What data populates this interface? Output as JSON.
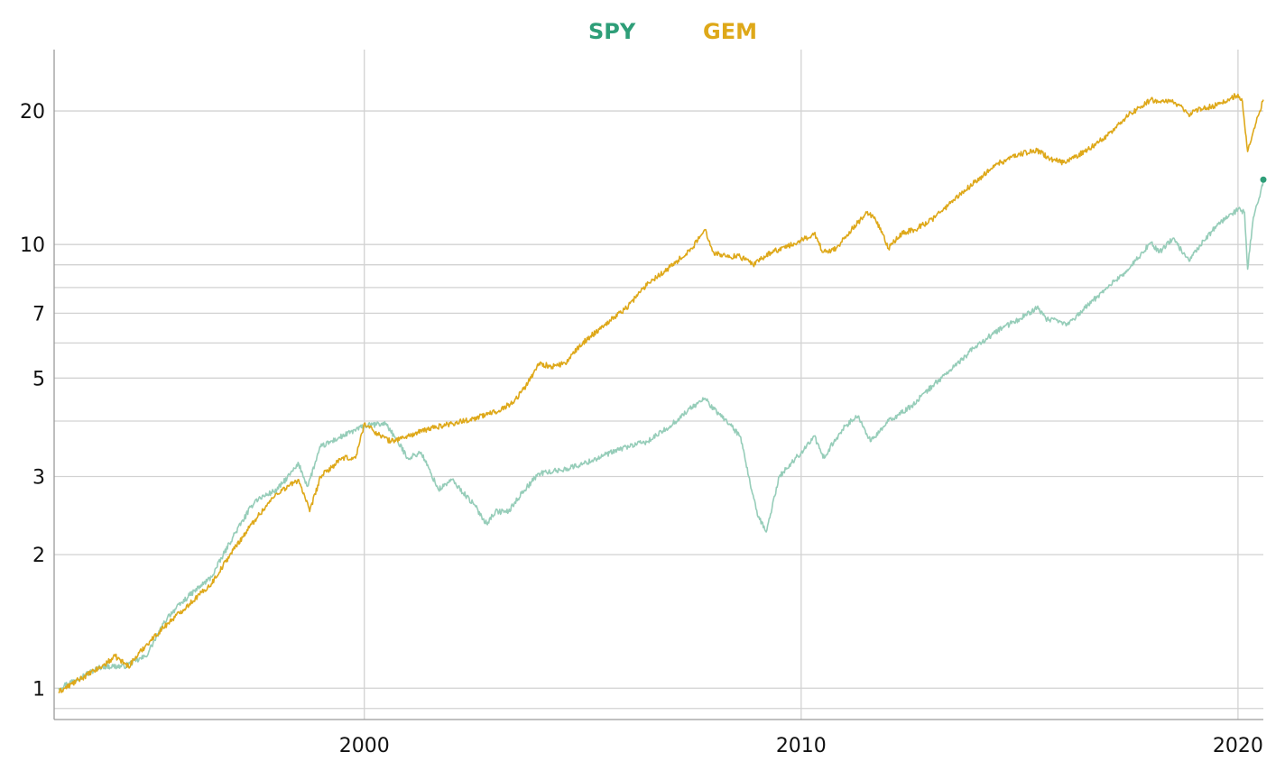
{
  "chart_data": {
    "type": "line",
    "title": "",
    "xlabel": "",
    "ylabel": "",
    "y_scale": "log",
    "xlim": [
      1992.9,
      2020.58
    ],
    "ylim": [
      0.85,
      27.5
    ],
    "grid": true,
    "legend_position": "top-center",
    "x_ticks": [
      {
        "value": 2000,
        "label": "2000"
      },
      {
        "value": 2010,
        "label": "2010"
      },
      {
        "value": 2020,
        "label": "2020"
      }
    ],
    "y_gridlines": [
      0.9,
      1,
      2,
      3,
      4,
      5,
      6,
      7,
      8,
      9,
      10,
      20
    ],
    "y_tick_labels": [
      {
        "value": 1,
        "label": "1"
      },
      {
        "value": 2,
        "label": "2"
      },
      {
        "value": 3,
        "label": "3"
      },
      {
        "value": 5,
        "label": "5"
      },
      {
        "value": 7,
        "label": "7"
      },
      {
        "value": 10,
        "label": "10"
      },
      {
        "value": 20,
        "label": "20"
      }
    ],
    "series": [
      {
        "name": "SPY",
        "color": "#96cdb9",
        "legend_color": "#2e9e78",
        "x": [
          1993.0,
          1993.5,
          1994.0,
          1994.5,
          1995.0,
          1995.5,
          1996.0,
          1996.5,
          1997.0,
          1997.5,
          1998.0,
          1998.5,
          1998.7,
          1999.0,
          1999.5,
          2000.0,
          2000.5,
          2001.0,
          2001.3,
          2001.7,
          2002.0,
          2002.5,
          2002.8,
          2003.0,
          2003.3,
          2003.6,
          2004.0,
          2004.5,
          2005.0,
          2005.5,
          2006.0,
          2006.5,
          2007.0,
          2007.5,
          2007.8,
          2008.0,
          2008.3,
          2008.6,
          2008.8,
          2009.0,
          2009.2,
          2009.5,
          2010.0,
          2010.3,
          2010.5,
          2011.0,
          2011.3,
          2011.6,
          2012.0,
          2012.5,
          2013.0,
          2013.5,
          2014.0,
          2014.5,
          2015.0,
          2015.4,
          2015.6,
          2015.9,
          2016.1,
          2016.5,
          2017.0,
          2017.5,
          2018.0,
          2018.2,
          2018.5,
          2018.9,
          2019.0,
          2019.5,
          2020.0,
          2020.15,
          2020.22,
          2020.35,
          2020.5,
          2020.58
        ],
        "y": [
          1.0,
          1.06,
          1.12,
          1.12,
          1.18,
          1.45,
          1.62,
          1.78,
          2.2,
          2.65,
          2.8,
          3.2,
          2.85,
          3.5,
          3.7,
          3.9,
          3.95,
          3.3,
          3.4,
          2.8,
          2.95,
          2.6,
          2.35,
          2.5,
          2.5,
          2.75,
          3.05,
          3.1,
          3.2,
          3.35,
          3.5,
          3.6,
          3.9,
          4.3,
          4.5,
          4.25,
          4.0,
          3.7,
          3.0,
          2.45,
          2.25,
          3.0,
          3.4,
          3.7,
          3.3,
          3.9,
          4.1,
          3.6,
          4.0,
          4.3,
          4.8,
          5.3,
          5.9,
          6.4,
          6.8,
          7.2,
          6.8,
          6.7,
          6.6,
          7.2,
          8.0,
          8.8,
          10.1,
          9.6,
          10.3,
          9.2,
          9.6,
          11.0,
          12.0,
          11.8,
          8.8,
          11.5,
          12.8,
          14.0
        ]
      },
      {
        "name": "GEM",
        "color": "#dea819",
        "legend_color": "#dea819",
        "x": [
          1993.0,
          1993.5,
          1994.0,
          1994.3,
          1994.6,
          1995.0,
          1995.5,
          1996.0,
          1996.5,
          1997.0,
          1997.5,
          1998.0,
          1998.5,
          1998.75,
          1999.0,
          1999.5,
          1999.8,
          2000.0,
          2000.3,
          2000.6,
          2001.0,
          2001.5,
          2002.0,
          2002.5,
          2003.0,
          2003.4,
          2003.7,
          2004.0,
          2004.3,
          2004.6,
          2005.0,
          2005.5,
          2006.0,
          2006.5,
          2007.0,
          2007.5,
          2007.8,
          2008.0,
          2008.3,
          2008.6,
          2008.9,
          2009.3,
          2009.7,
          2010.0,
          2010.3,
          2010.5,
          2010.8,
          2011.0,
          2011.3,
          2011.5,
          2011.7,
          2012.0,
          2012.3,
          2012.6,
          2013.0,
          2013.5,
          2014.0,
          2014.5,
          2015.0,
          2015.4,
          2015.7,
          2016.0,
          2016.5,
          2017.0,
          2017.5,
          2018.0,
          2018.2,
          2018.5,
          2018.9,
          2019.0,
          2019.5,
          2020.0,
          2020.1,
          2020.22,
          2020.35,
          2020.5,
          2020.58
        ],
        "y": [
          0.98,
          1.05,
          1.12,
          1.18,
          1.12,
          1.25,
          1.4,
          1.55,
          1.72,
          2.05,
          2.4,
          2.75,
          2.95,
          2.5,
          3.0,
          3.3,
          3.3,
          3.95,
          3.75,
          3.6,
          3.7,
          3.85,
          3.95,
          4.05,
          4.2,
          4.4,
          4.8,
          5.4,
          5.3,
          5.4,
          6.0,
          6.6,
          7.2,
          8.2,
          8.9,
          9.8,
          10.8,
          9.6,
          9.4,
          9.4,
          9.0,
          9.6,
          9.9,
          10.2,
          10.6,
          9.6,
          9.8,
          10.4,
          11.2,
          11.8,
          11.4,
          9.8,
          10.6,
          10.8,
          11.4,
          12.6,
          13.9,
          15.2,
          16.0,
          16.3,
          15.6,
          15.3,
          16.2,
          17.6,
          19.6,
          21.2,
          21.0,
          21.2,
          19.5,
          20.0,
          20.6,
          21.8,
          21.0,
          16.2,
          18.0,
          20.0,
          21.2
        ]
      }
    ]
  }
}
